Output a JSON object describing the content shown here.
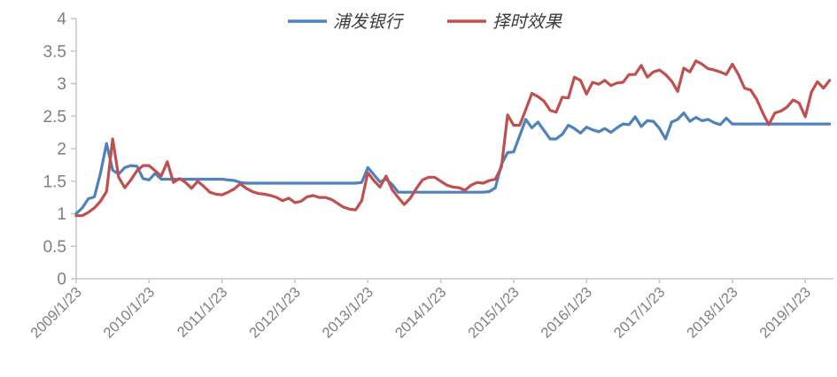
{
  "legend": {
    "position": "top-center",
    "entries": [
      {
        "label": "浦发银行",
        "color": "#4F81BD"
      },
      {
        "label": "择时效果",
        "color": "#C0504D"
      }
    ]
  },
  "colors": {
    "background": "#ffffff",
    "axis_line": "#c9c9c9",
    "tick_text": "#7f7f7f",
    "legend_text": "#3b3b3b",
    "series_blue": "#4F81BD",
    "series_red": "#C0504D"
  },
  "chart_data": {
    "type": "line",
    "title": "",
    "xlabel": "",
    "ylabel": "",
    "grid": false,
    "legend_position": "top-center",
    "x_start_date": "2009/1/23",
    "x_interval": "monthly",
    "x_tick_labels": [
      "2009/1/23",
      "2010/1/23",
      "2011/1/23",
      "2012/1/23",
      "2013/1/23",
      "2014/1/23",
      "2015/1/23",
      "2016/1/23",
      "2017/1/23",
      "2018/1/23",
      "2019/1/23"
    ],
    "y_ticks": [
      0,
      0.5,
      1,
      1.5,
      2,
      2.5,
      3,
      3.5,
      4
    ],
    "ylim": [
      0,
      4
    ],
    "series": [
      {
        "name": "浦发银行",
        "color": "#4F81BD",
        "values": [
          1.0,
          1.09,
          1.23,
          1.26,
          1.62,
          2.08,
          1.67,
          1.61,
          1.71,
          1.74,
          1.73,
          1.54,
          1.52,
          1.62,
          1.53,
          1.53,
          1.53,
          1.53,
          1.53,
          1.53,
          1.53,
          1.53,
          1.53,
          1.53,
          1.53,
          1.52,
          1.51,
          1.48,
          1.47,
          1.47,
          1.47,
          1.47,
          1.47,
          1.47,
          1.47,
          1.47,
          1.47,
          1.47,
          1.47,
          1.47,
          1.47,
          1.47,
          1.47,
          1.47,
          1.47,
          1.47,
          1.47,
          1.48,
          1.71,
          1.6,
          1.49,
          1.53,
          1.45,
          1.33,
          1.33,
          1.33,
          1.33,
          1.33,
          1.33,
          1.33,
          1.33,
          1.33,
          1.33,
          1.33,
          1.33,
          1.33,
          1.33,
          1.33,
          1.34,
          1.4,
          1.76,
          1.94,
          1.95,
          2.2,
          2.45,
          2.32,
          2.41,
          2.28,
          2.15,
          2.15,
          2.22,
          2.36,
          2.31,
          2.24,
          2.33,
          2.29,
          2.26,
          2.31,
          2.25,
          2.32,
          2.38,
          2.37,
          2.49,
          2.34,
          2.43,
          2.42,
          2.31,
          2.15,
          2.41,
          2.45,
          2.55,
          2.42,
          2.48,
          2.43,
          2.45,
          2.4,
          2.37,
          2.47,
          2.38,
          2.38,
          2.38,
          2.38,
          2.38,
          2.38,
          2.38,
          2.38,
          2.38,
          2.38,
          2.38,
          2.38,
          2.38,
          2.38,
          2.38,
          2.38,
          2.38
        ]
      },
      {
        "name": "择时效果",
        "color": "#C0504D",
        "values": [
          0.97,
          0.97,
          1.02,
          1.09,
          1.19,
          1.34,
          2.15,
          1.56,
          1.4,
          1.52,
          1.66,
          1.74,
          1.74,
          1.66,
          1.58,
          1.8,
          1.48,
          1.54,
          1.48,
          1.39,
          1.5,
          1.42,
          1.33,
          1.3,
          1.29,
          1.33,
          1.38,
          1.46,
          1.39,
          1.34,
          1.31,
          1.3,
          1.28,
          1.25,
          1.2,
          1.24,
          1.17,
          1.19,
          1.26,
          1.28,
          1.25,
          1.25,
          1.22,
          1.16,
          1.1,
          1.07,
          1.06,
          1.2,
          1.63,
          1.51,
          1.41,
          1.58,
          1.37,
          1.25,
          1.14,
          1.24,
          1.39,
          1.52,
          1.56,
          1.56,
          1.5,
          1.44,
          1.41,
          1.4,
          1.36,
          1.44,
          1.48,
          1.47,
          1.51,
          1.53,
          1.72,
          2.52,
          2.36,
          2.36,
          2.6,
          2.85,
          2.8,
          2.73,
          2.59,
          2.56,
          2.79,
          2.78,
          3.1,
          3.05,
          2.84,
          3.02,
          2.99,
          3.05,
          2.97,
          3.01,
          3.02,
          3.14,
          3.14,
          3.28,
          3.1,
          3.18,
          3.21,
          3.14,
          3.04,
          2.88,
          3.24,
          3.18,
          3.35,
          3.3,
          3.23,
          3.21,
          3.18,
          3.14,
          3.3,
          3.14,
          2.93,
          2.9,
          2.76,
          2.55,
          2.37,
          2.55,
          2.58,
          2.64,
          2.75,
          2.7,
          2.49,
          2.87,
          3.03,
          2.93,
          3.05
        ]
      }
    ]
  }
}
